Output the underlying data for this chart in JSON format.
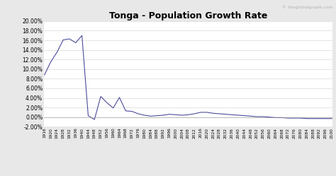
{
  "title": "Tonga - Population Growth Rate",
  "watermark": "© theglobalgraph.com",
  "line_color": "#4b4b9b",
  "background_color": "#e8e8e8",
  "plot_bg_color": "#ffffff",
  "ylim": [
    -0.02,
    0.2
  ],
  "yticks": [
    -0.02,
    0.0,
    0.02,
    0.04,
    0.06,
    0.08,
    0.1,
    0.12,
    0.14,
    0.16,
    0.18,
    0.2
  ],
  "ytick_labels": [
    "-2.00%",
    "0.00%",
    "2.00%",
    "4.00%",
    "6.00%",
    "8.00%",
    "10.00%",
    "12.00%",
    "14.00%",
    "16.00%",
    "18.00%",
    "20.00%"
  ],
  "years": [
    1916,
    1920,
    1924,
    1928,
    1932,
    1936,
    1940,
    1944,
    1948,
    1952,
    1956,
    1960,
    1964,
    1968,
    1972,
    1976,
    1980,
    1984,
    1988,
    1992,
    1996,
    2000,
    2004,
    2008,
    2012,
    2016,
    2020,
    2024,
    2028,
    2032,
    2036,
    2040,
    2044,
    2048,
    2052,
    2056,
    2060,
    2064,
    2068,
    2072,
    2076,
    2080,
    2084,
    2088,
    2092,
    2096,
    2100
  ],
  "values": [
    0.088,
    0.115,
    0.135,
    0.161,
    0.163,
    0.155,
    0.17,
    0.003,
    -0.005,
    0.043,
    0.03,
    0.019,
    0.041,
    0.013,
    0.012,
    0.007,
    0.004,
    0.002,
    0.003,
    0.004,
    0.006,
    0.005,
    0.004,
    0.005,
    0.007,
    0.01,
    0.01,
    0.008,
    0.007,
    0.006,
    0.005,
    0.004,
    0.003,
    0.002,
    0.001,
    0.001,
    0.0,
    -0.001,
    -0.001,
    -0.002,
    -0.002,
    -0.002,
    -0.003,
    -0.003,
    -0.003,
    -0.003,
    -0.003
  ],
  "xtick_years": [
    1916,
    1920,
    1924,
    1928,
    1932,
    1936,
    1940,
    1944,
    1948,
    1952,
    1956,
    1960,
    1964,
    1968,
    1972,
    1976,
    1980,
    1984,
    1988,
    1992,
    1996,
    2000,
    2004,
    2008,
    2012,
    2016,
    2020,
    2024,
    2028,
    2032,
    2036,
    2040,
    2044,
    2048,
    2052,
    2056,
    2060,
    2064,
    2068,
    2072,
    2076,
    2080,
    2084,
    2088,
    2092,
    2096,
    2100
  ],
  "title_fontsize": 9,
  "ytick_fontsize": 5.5,
  "xtick_fontsize": 4.2,
  "watermark_fontsize": 4.5,
  "line_width": 0.8
}
